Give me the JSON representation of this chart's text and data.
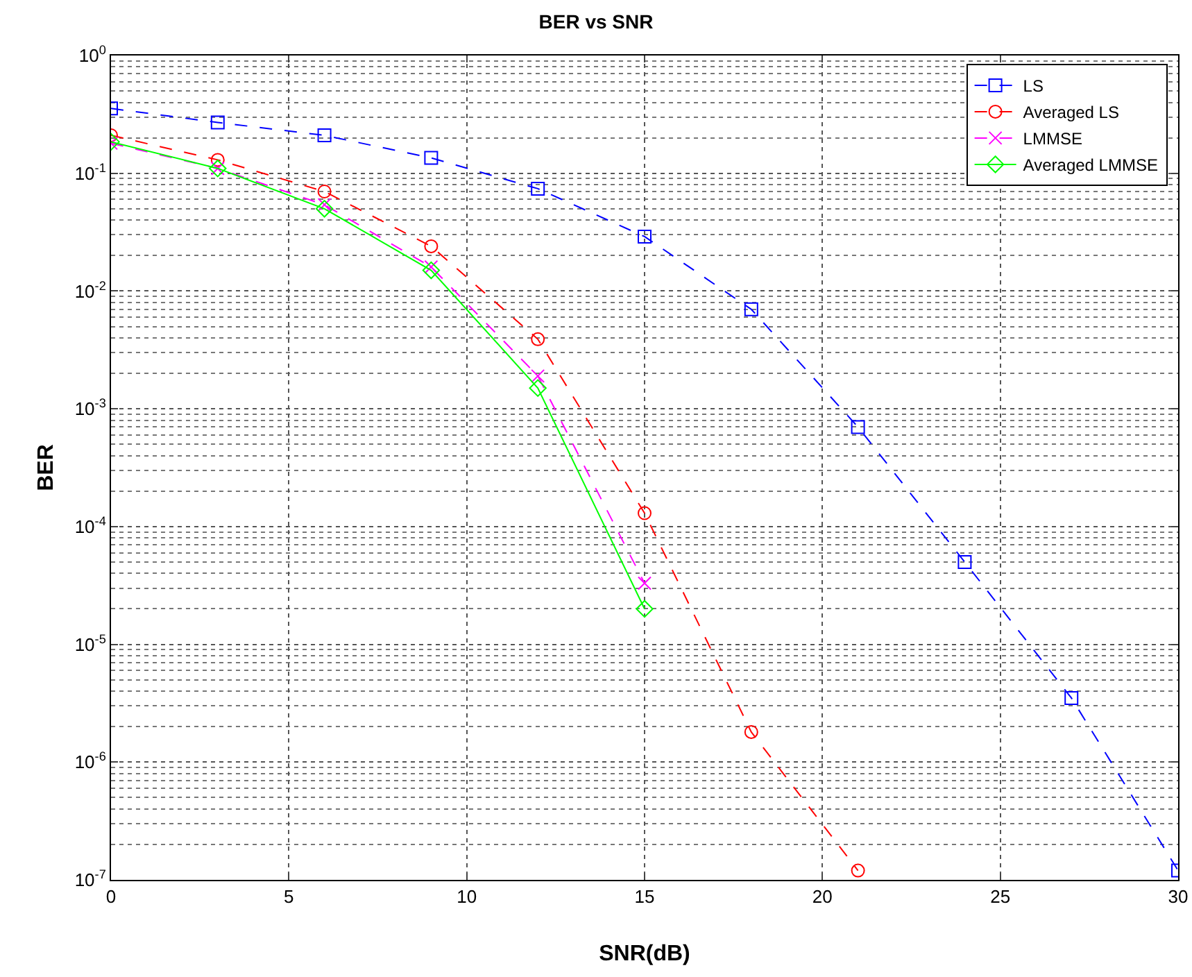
{
  "chart_data": {
    "type": "line",
    "title": "BER vs SNR",
    "xlabel": "SNR(dB)",
    "ylabel": "BER",
    "log": "y",
    "grid": true,
    "legend": "top right",
    "x": [
      0,
      3,
      6,
      9,
      12,
      15,
      18,
      21,
      24,
      27,
      30
    ],
    "xlim": [
      0,
      30
    ],
    "xticks": [
      0,
      5,
      10,
      15,
      20,
      25,
      30
    ],
    "ylim": [
      1e-07,
      1
    ],
    "yticks": [
      {
        "value": 1,
        "label": "10$^{0}$"
      },
      {
        "value": 0.1,
        "label": "10$^{-1}$"
      },
      {
        "value": 0.01,
        "label": "10$^{-2}$"
      },
      {
        "value": 0.001,
        "label": "10$^{-3}$"
      },
      {
        "value": 0.0001,
        "label": "10$^{-4}$"
      },
      {
        "value": 1e-05,
        "label": "10$^{-5}$"
      },
      {
        "value": 1e-06,
        "label": "10$^{-6}$"
      },
      {
        "value": 1e-07,
        "label": "10$^{-7}$"
      }
    ],
    "series": [
      {
        "name": "LS",
        "color": "#0000ff",
        "marker": "square",
        "line_style": "dashed",
        "values": [
          0.355,
          0.27,
          0.21,
          0.135,
          0.074,
          0.029,
          0.007,
          0.0007,
          5e-05,
          3.5e-06,
          1.2e-07
        ]
      },
      {
        "name": "Averaged LS",
        "color": "#ff0000",
        "x": [
          0,
          3,
          6,
          9,
          12,
          15,
          18,
          21
        ],
        "marker": "circle",
        "line_style": "dashed",
        "values": [
          0.21,
          0.13,
          0.07,
          0.024,
          0.0039,
          0.00013,
          1.8e-06,
          1.2e-07
        ]
      },
      {
        "name": "LMMSE",
        "color": "#ff00ff",
        "x": [
          0,
          3,
          6,
          9,
          12,
          15
        ],
        "marker": "cross",
        "line_style": "dashed",
        "values": [
          0.18,
          0.11,
          0.054,
          0.016,
          0.0019,
          3.3e-05
        ]
      },
      {
        "name": "Averaged LMMSE",
        "color": "#00ff00",
        "x": [
          0,
          3,
          6,
          9,
          12,
          15
        ],
        "marker": "diamond",
        "line_style": "solid",
        "values": [
          0.185,
          0.11,
          0.05,
          0.015,
          0.0015,
          2e-05
        ]
      }
    ]
  }
}
